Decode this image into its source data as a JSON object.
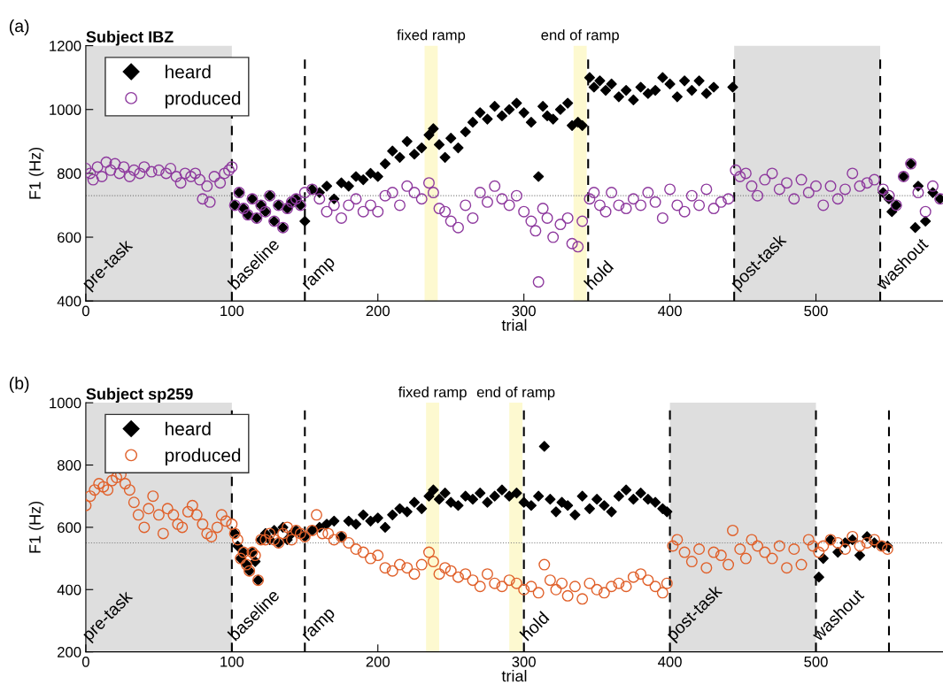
{
  "chart_data": [
    {
      "type": "scatter",
      "title": "Subject IBZ",
      "xlabel": "trial",
      "ylabel": "F1 (Hz)",
      "xlim": [
        0,
        587
      ],
      "ylim": [
        400,
        1200
      ],
      "xticks": [
        0,
        100,
        200,
        300,
        400,
        500
      ],
      "yticks": [
        400,
        600,
        800,
        1000,
        1200
      ],
      "legend": "top left",
      "series": [
        {
          "name": "heard",
          "color": "#000000",
          "marker": "diamond",
          "x": [
            102,
            105,
            108,
            111,
            114,
            117,
            120,
            123,
            126,
            129,
            132,
            135,
            138,
            141,
            144,
            147,
            150,
            155,
            160,
            165,
            170,
            175,
            180,
            185,
            190,
            195,
            200,
            205,
            210,
            215,
            220,
            225,
            230,
            235,
            238,
            242,
            246,
            250,
            255,
            260,
            265,
            270,
            275,
            280,
            285,
            290,
            295,
            300,
            305,
            310,
            313,
            316,
            320,
            325,
            330,
            333,
            337,
            340,
            345,
            348,
            352,
            356,
            360,
            365,
            370,
            375,
            380,
            385,
            390,
            395,
            400,
            405,
            410,
            415,
            420,
            425,
            430,
            443,
            546,
            550,
            552,
            555,
            560,
            565,
            568,
            570,
            575,
            580,
            585
          ],
          "values": [
            700,
            740,
            690,
            670,
            720,
            660,
            700,
            680,
            730,
            650,
            700,
            630,
            690,
            710,
            720,
            700,
            650,
            750,
            740,
            760,
            720,
            770,
            760,
            790,
            780,
            800,
            790,
            830,
            870,
            850,
            900,
            860,
            880,
            920,
            940,
            890,
            850,
            910,
            880,
            930,
            960,
            990,
            970,
            1010,
            980,
            1000,
            1020,
            990,
            960,
            790,
            1010,
            980,
            970,
            1000,
            1020,
            950,
            960,
            950,
            1100,
            1070,
            1090,
            1060,
            1080,
            1040,
            1060,
            1030,
            1070,
            1050,
            1060,
            1100,
            1080,
            1040,
            1090,
            1060,
            1090,
            1050,
            1070,
            1070,
            740,
            720,
            680,
            700,
            790,
            830,
            630,
            760,
            650,
            740,
            720
          ]
        },
        {
          "name": "produced",
          "color": "#8e3a9e",
          "marker": "circle",
          "x": [
            0,
            3,
            5,
            8,
            11,
            14,
            17,
            20,
            23,
            26,
            30,
            33,
            37,
            40,
            45,
            50,
            55,
            58,
            62,
            65,
            68,
            72,
            75,
            78,
            80,
            83,
            85,
            88,
            92,
            95,
            98,
            100,
            102,
            105,
            108,
            111,
            114,
            117,
            120,
            123,
            126,
            129,
            132,
            135,
            138,
            141,
            144,
            147,
            150,
            155,
            160,
            165,
            170,
            175,
            180,
            185,
            190,
            195,
            200,
            205,
            210,
            215,
            220,
            225,
            230,
            235,
            238,
            242,
            246,
            250,
            255,
            260,
            265,
            270,
            275,
            280,
            285,
            290,
            295,
            300,
            305,
            308,
            310,
            313,
            316,
            320,
            325,
            330,
            333,
            337,
            340,
            345,
            348,
            352,
            356,
            360,
            365,
            370,
            375,
            380,
            385,
            390,
            395,
            400,
            405,
            410,
            415,
            420,
            425,
            430,
            435,
            440,
            445,
            448,
            452,
            456,
            460,
            465,
            470,
            475,
            480,
            485,
            490,
            495,
            500,
            505,
            510,
            515,
            520,
            525,
            530,
            535,
            540,
            546,
            550,
            555,
            560,
            565,
            570,
            575,
            580,
            585
          ],
          "values": [
            815,
            800,
            780,
            820,
            790,
            835,
            810,
            830,
            800,
            820,
            790,
            810,
            800,
            820,
            805,
            810,
            800,
            815,
            790,
            770,
            800,
            790,
            800,
            780,
            720,
            760,
            710,
            790,
            770,
            800,
            810,
            820,
            700,
            740,
            690,
            670,
            720,
            660,
            700,
            680,
            730,
            650,
            700,
            630,
            690,
            710,
            720,
            700,
            740,
            750,
            720,
            680,
            700,
            660,
            700,
            720,
            680,
            700,
            680,
            730,
            740,
            700,
            760,
            740,
            720,
            770,
            740,
            690,
            680,
            650,
            630,
            700,
            660,
            740,
            710,
            760,
            720,
            700,
            730,
            680,
            650,
            620,
            460,
            690,
            660,
            600,
            640,
            660,
            580,
            570,
            650,
            720,
            740,
            700,
            680,
            740,
            700,
            690,
            720,
            700,
            740,
            710,
            660,
            750,
            700,
            680,
            730,
            700,
            750,
            690,
            710,
            720,
            810,
            790,
            800,
            760,
            730,
            780,
            800,
            750,
            770,
            720,
            780,
            740,
            760,
            700,
            760,
            720,
            750,
            800,
            760,
            770,
            780,
            750,
            730,
            700,
            790,
            830,
            740,
            680,
            760,
            720
          ]
        }
      ],
      "ref_lines": [
        {
          "axis": "x",
          "value": 100,
          "line_style": "dashed"
        },
        {
          "axis": "x",
          "value": 150,
          "line_style": "dashed"
        },
        {
          "axis": "x",
          "value": 344,
          "line_style": "dashed"
        },
        {
          "axis": "x",
          "value": 444,
          "line_style": "dashed"
        },
        {
          "axis": "x",
          "value": 544,
          "line_style": "dashed"
        },
        {
          "axis": "y",
          "value": 730,
          "line_style": "dotted",
          "color": "#808080"
        }
      ],
      "bands": [
        {
          "axis": "x",
          "from": 0,
          "to": 100,
          "color": "#dedede"
        },
        {
          "axis": "x",
          "from": 444,
          "to": 544,
          "color": "#dedede"
        },
        {
          "axis": "x",
          "from": 232,
          "to": 241,
          "label": "fixed ramp",
          "color": "#fdf9d0"
        },
        {
          "axis": "x",
          "from": 334,
          "to": 343,
          "label": "end of ramp",
          "color": "#fdf9d0"
        }
      ],
      "annotations": [
        "(a)",
        "pre-task",
        "baseline",
        "ramp",
        "hold",
        "post-task",
        "washout"
      ]
    },
    {
      "type": "scatter",
      "title": "Subject sp259",
      "xlabel": "trial",
      "ylabel": "F1 (Hz)",
      "xlim": [
        0,
        587
      ],
      "ylim": [
        200,
        1000
      ],
      "xticks": [
        0,
        100,
        200,
        300,
        400,
        500
      ],
      "yticks": [
        200,
        400,
        600,
        800,
        1000
      ],
      "legend": "top left",
      "series": [
        {
          "name": "heard",
          "color": "#000000",
          "marker": "diamond",
          "x": [
            102,
            104,
            106,
            108,
            110,
            112,
            114,
            116,
            118,
            120,
            123,
            126,
            129,
            132,
            135,
            138,
            141,
            144,
            147,
            150,
            155,
            160,
            165,
            170,
            175,
            180,
            185,
            190,
            195,
            200,
            205,
            210,
            215,
            220,
            225,
            230,
            235,
            238,
            242,
            246,
            250,
            255,
            260,
            265,
            270,
            275,
            280,
            285,
            290,
            295,
            300,
            305,
            310,
            314,
            318,
            322,
            326,
            330,
            335,
            340,
            345,
            350,
            355,
            360,
            365,
            370,
            375,
            380,
            385,
            390,
            395,
            398,
            502,
            505,
            510,
            515,
            520,
            525,
            530,
            535,
            540,
            545,
            549
          ],
          "values": [
            580,
            540,
            500,
            520,
            480,
            460,
            520,
            490,
            430,
            560,
            580,
            560,
            590,
            550,
            600,
            560,
            580,
            590,
            580,
            570,
            590,
            600,
            610,
            620,
            570,
            620,
            610,
            640,
            620,
            630,
            600,
            640,
            660,
            650,
            680,
            660,
            700,
            720,
            690,
            710,
            680,
            670,
            700,
            690,
            710,
            680,
            700,
            720,
            700,
            710,
            680,
            670,
            700,
            860,
            690,
            650,
            680,
            670,
            640,
            700,
            660,
            690,
            670,
            650,
            700,
            720,
            690,
            710,
            690,
            680,
            660,
            650,
            440,
            500,
            560,
            520,
            550,
            560,
            510,
            570,
            550,
            540,
            540
          ]
        },
        {
          "name": "produced",
          "color": "#e0602a",
          "marker": "circle",
          "x": [
            0,
            3,
            6,
            9,
            12,
            15,
            18,
            21,
            24,
            27,
            30,
            33,
            36,
            40,
            43,
            46,
            50,
            53,
            56,
            60,
            63,
            66,
            70,
            73,
            76,
            80,
            83,
            86,
            90,
            93,
            96,
            100,
            102,
            104,
            106,
            108,
            110,
            112,
            114,
            116,
            118,
            120,
            123,
            126,
            129,
            132,
            135,
            138,
            141,
            144,
            147,
            150,
            155,
            158,
            162,
            166,
            170,
            175,
            180,
            185,
            190,
            195,
            200,
            205,
            210,
            215,
            220,
            225,
            230,
            235,
            238,
            242,
            246,
            250,
            255,
            260,
            265,
            270,
            275,
            280,
            285,
            290,
            295,
            300,
            305,
            310,
            314,
            318,
            322,
            326,
            330,
            335,
            340,
            345,
            350,
            355,
            360,
            365,
            370,
            375,
            380,
            385,
            390,
            395,
            398,
            402,
            405,
            410,
            415,
            420,
            425,
            430,
            435,
            440,
            443,
            448,
            452,
            456,
            460,
            465,
            470,
            475,
            480,
            485,
            490,
            495,
            498,
            502,
            505,
            510,
            515,
            520,
            525,
            530,
            535,
            540,
            545,
            549
          ],
          "values": [
            670,
            700,
            720,
            740,
            730,
            720,
            750,
            760,
            770,
            740,
            720,
            680,
            640,
            600,
            660,
            700,
            640,
            580,
            660,
            640,
            610,
            600,
            650,
            670,
            640,
            610,
            580,
            570,
            600,
            640,
            620,
            610,
            580,
            560,
            500,
            520,
            480,
            460,
            520,
            510,
            430,
            560,
            560,
            580,
            560,
            550,
            580,
            600,
            560,
            590,
            580,
            570,
            590,
            640,
            580,
            580,
            560,
            570,
            550,
            530,
            520,
            500,
            510,
            470,
            460,
            480,
            470,
            450,
            480,
            520,
            490,
            450,
            470,
            460,
            440,
            450,
            430,
            410,
            450,
            420,
            410,
            430,
            420,
            400,
            410,
            390,
            480,
            430,
            400,
            420,
            380,
            410,
            370,
            420,
            400,
            390,
            410,
            420,
            410,
            440,
            450,
            430,
            410,
            390,
            420,
            540,
            560,
            520,
            490,
            530,
            470,
            520,
            510,
            480,
            590,
            530,
            500,
            560,
            540,
            520,
            500,
            540,
            470,
            530,
            480,
            560,
            540,
            520,
            540,
            560,
            550,
            530,
            570,
            540,
            550,
            560,
            540,
            530
          ]
        }
      ],
      "ref_lines": [
        {
          "axis": "x",
          "value": 100,
          "line_style": "dashed"
        },
        {
          "axis": "x",
          "value": 150,
          "line_style": "dashed"
        },
        {
          "axis": "x",
          "value": 300,
          "line_style": "dashed"
        },
        {
          "axis": "x",
          "value": 400,
          "line_style": "dashed"
        },
        {
          "axis": "x",
          "value": 500,
          "line_style": "dashed"
        },
        {
          "axis": "x",
          "value": 550,
          "line_style": "dashed"
        },
        {
          "axis": "y",
          "value": 550,
          "line_style": "dotted",
          "color": "#808080"
        }
      ],
      "bands": [
        {
          "axis": "x",
          "from": 0,
          "to": 100,
          "color": "#dedede"
        },
        {
          "axis": "x",
          "from": 400,
          "to": 500,
          "color": "#dedede"
        },
        {
          "axis": "x",
          "from": 233,
          "to": 242,
          "label": "fixed ramp",
          "color": "#fdf9d0"
        },
        {
          "axis": "x",
          "from": 290,
          "to": 299,
          "label": "end of ramp",
          "color": "#fdf9d0"
        }
      ],
      "annotations": [
        "(b)",
        "pre-task",
        "baseline",
        "ramp",
        "hold",
        "post-task",
        "washout"
      ]
    }
  ]
}
